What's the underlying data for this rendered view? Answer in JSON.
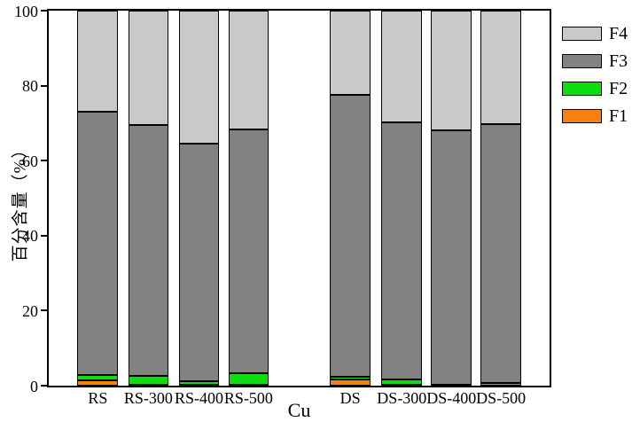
{
  "chart_data": {
    "type": "stacked-bar",
    "title": "",
    "xlabel": "Cu",
    "ylabel": "百分含量（%）",
    "ylim": [
      0,
      100
    ],
    "yticks": [
      0,
      20,
      40,
      60,
      80,
      100
    ],
    "categories": [
      "RS",
      "RS-300",
      "RS-400",
      "RS-500",
      "DS",
      "DS-300",
      "DS-400",
      "DS-500"
    ],
    "series": [
      {
        "name": "F1",
        "color": "#f8800f",
        "values": [
          1.5,
          0.2,
          0.2,
          0.3,
          1.6,
          0.2,
          0.1,
          0.6
        ]
      },
      {
        "name": "F2",
        "color": "#0ddd0d",
        "values": [
          1.3,
          2.3,
          0.9,
          2.9,
          0.8,
          1.5,
          0.2,
          0.1
        ]
      },
      {
        "name": "F3",
        "color": "#828282",
        "values": [
          70.2,
          67.0,
          63.4,
          65.1,
          75.1,
          68.5,
          67.7,
          69.1
        ]
      },
      {
        "name": "F4",
        "color": "#c9c9c9",
        "values": [
          27.0,
          30.5,
          35.5,
          31.7,
          22.5,
          29.8,
          32.0,
          30.2
        ]
      }
    ],
    "legend": {
      "position": "upper-right",
      "entries": [
        "F4",
        "F3",
        "F2",
        "F1"
      ]
    },
    "layout": {
      "grid": false,
      "bar_centers_pct": [
        9.8,
        19.9,
        30.0,
        39.9,
        60.2,
        70.5,
        80.4,
        90.3
      ],
      "bar_width_pct": 8.1,
      "axis_color": "#000000",
      "background": "#ffffff"
    }
  }
}
